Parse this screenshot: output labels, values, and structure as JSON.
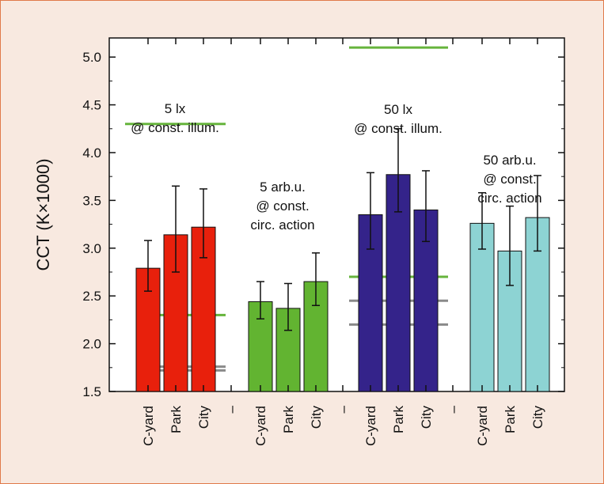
{
  "chart_data": {
    "type": "bar",
    "title": "",
    "xlabel": "",
    "ylabel": "CCT (K×1000)",
    "ylim": [
      1.5,
      5.2
    ],
    "yticks": [
      1.5,
      2.0,
      2.5,
      3.0,
      3.5,
      4.0,
      4.5,
      5.0
    ],
    "ytick_labels": [
      "1.5",
      "2.0",
      "2.5",
      "3.0",
      "3.5",
      "4.0",
      "4.5",
      "5.0"
    ],
    "grid": false,
    "group_separator": "–",
    "groups": [
      {
        "annotation": [
          "5 lx",
          "@ const. illum."
        ],
        "color": "#e8200c",
        "categories": [
          "C-yard",
          "Park",
          "City"
        ],
        "values": [
          2.79,
          3.14,
          3.22
        ],
        "error_low": [
          2.55,
          2.75,
          2.9
        ],
        "error_high": [
          3.08,
          3.65,
          3.62
        ],
        "ref_lines": [
          {
            "value": 2.3,
            "color": "#66b43c"
          },
          {
            "value": 1.76,
            "color": "#8a8a8a"
          },
          {
            "value": 1.72,
            "color": "#8a8a8a"
          }
        ]
      },
      {
        "annotation": [
          "5 arb.u.",
          "@ const.",
          "circ. action"
        ],
        "color": "#62b431",
        "categories": [
          "C-yard",
          "Park",
          "City"
        ],
        "values": [
          2.44,
          2.37,
          2.65
        ],
        "error_low": [
          2.26,
          2.14,
          2.4
        ],
        "error_high": [
          2.65,
          2.63,
          2.95
        ],
        "ref_lines": []
      },
      {
        "annotation": [
          "50 lx",
          "@ const. illum."
        ],
        "color": "#34238a",
        "categories": [
          "C-yard",
          "Park",
          "City"
        ],
        "values": [
          3.35,
          3.77,
          3.4
        ],
        "error_low": [
          2.99,
          3.38,
          3.07
        ],
        "error_high": [
          3.79,
          4.25,
          3.81
        ],
        "ref_lines": [
          {
            "value": 5.1,
            "color": "#66b43c"
          },
          {
            "value": 2.7,
            "color": "#66b43c"
          },
          {
            "value": 2.45,
            "color": "#8a8a8a"
          },
          {
            "value": 2.2,
            "color": "#8a8a8a"
          }
        ]
      },
      {
        "annotation": [
          "50 arb.u.",
          "@ const.",
          "circ. action"
        ],
        "color": "#8dd3d3",
        "categories": [
          "C-yard",
          "Park",
          "City"
        ],
        "values": [
          3.26,
          2.97,
          3.32
        ],
        "error_low": [
          2.99,
          2.61,
          2.97
        ],
        "error_high": [
          3.58,
          3.44,
          3.76
        ],
        "ref_lines": [
          {
            "value": 4.3,
            "color": "#66b43c",
            "note": "drawn above group 1"
          }
        ]
      }
    ],
    "colors": {
      "axis": "#111111",
      "background": "#ffffff",
      "frame": "#e07a4a"
    }
  }
}
